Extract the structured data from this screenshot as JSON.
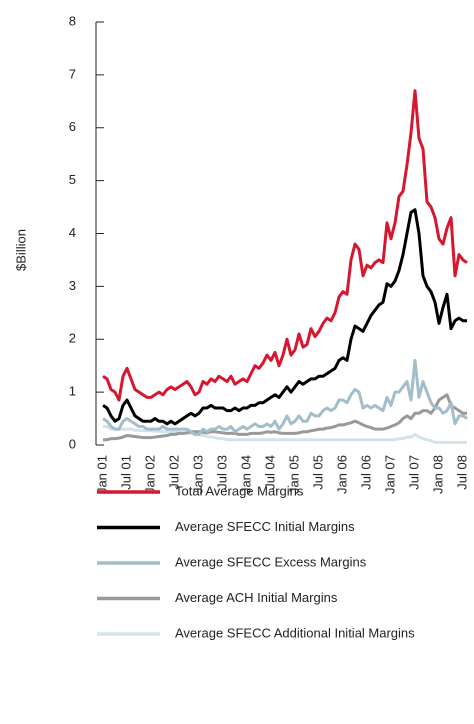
{
  "chart_data": {
    "type": "line",
    "y_label": "$Billion",
    "categories": [
      "Jan 01",
      null,
      null,
      null,
      null,
      null,
      "Jul 01",
      null,
      null,
      null,
      null,
      null,
      "Jan 02",
      null,
      null,
      null,
      null,
      null,
      "Jul 02",
      null,
      null,
      null,
      null,
      null,
      "Jan 03",
      null,
      null,
      null,
      null,
      null,
      "Jul 03",
      null,
      null,
      null,
      null,
      null,
      "Jan 04",
      null,
      null,
      null,
      null,
      null,
      "Jul 04",
      null,
      null,
      null,
      null,
      null,
      "Jan 05",
      null,
      null,
      null,
      null,
      null,
      "Jul 05",
      null,
      null,
      null,
      null,
      null,
      "Jan 06",
      null,
      null,
      null,
      null,
      null,
      "Jul 06",
      null,
      null,
      null,
      null,
      null,
      "Jan 07",
      null,
      null,
      null,
      null,
      null,
      "Jul 07",
      null,
      null,
      null,
      null,
      null,
      "Jan 08",
      null,
      null,
      null,
      null,
      null,
      "Jul 08",
      null
    ],
    "ylim": [
      0,
      8
    ],
    "yticks": [
      0,
      1,
      2,
      3,
      4,
      5,
      6,
      7,
      8
    ],
    "series": [
      {
        "name": "Total Average Margins",
        "color": "#d7172f",
        "values": [
          1.3,
          1.25,
          1.05,
          1.0,
          0.85,
          1.3,
          1.45,
          1.25,
          1.05,
          1.0,
          0.95,
          0.9,
          0.9,
          0.95,
          1.0,
          0.95,
          1.05,
          1.1,
          1.05,
          1.1,
          1.15,
          1.2,
          1.1,
          0.95,
          1.0,
          1.2,
          1.15,
          1.25,
          1.2,
          1.3,
          1.25,
          1.2,
          1.3,
          1.15,
          1.2,
          1.25,
          1.2,
          1.35,
          1.5,
          1.45,
          1.55,
          1.7,
          1.6,
          1.75,
          1.5,
          1.7,
          2.0,
          1.7,
          1.8,
          2.1,
          1.85,
          1.9,
          2.2,
          2.05,
          2.15,
          2.3,
          2.4,
          2.35,
          2.5,
          2.8,
          2.9,
          2.85,
          3.5,
          3.8,
          3.7,
          3.2,
          3.4,
          3.35,
          3.45,
          3.5,
          3.45,
          4.2,
          3.9,
          4.2,
          4.7,
          4.8,
          5.3,
          5.9,
          6.7,
          5.8,
          5.6,
          4.6,
          4.5,
          4.3,
          3.9,
          3.8,
          4.1,
          4.3,
          3.2,
          3.6,
          3.5,
          3.45
        ]
      },
      {
        "name": "Average SFECC Initial Margins",
        "color": "#000000",
        "values": [
          0.75,
          0.7,
          0.55,
          0.45,
          0.5,
          0.75,
          0.85,
          0.7,
          0.55,
          0.5,
          0.45,
          0.45,
          0.45,
          0.5,
          0.45,
          0.45,
          0.4,
          0.45,
          0.4,
          0.45,
          0.5,
          0.55,
          0.6,
          0.55,
          0.6,
          0.7,
          0.7,
          0.75,
          0.7,
          0.7,
          0.7,
          0.65,
          0.65,
          0.7,
          0.65,
          0.7,
          0.7,
          0.75,
          0.75,
          0.8,
          0.8,
          0.85,
          0.9,
          0.95,
          0.9,
          1.0,
          1.1,
          1.0,
          1.1,
          1.2,
          1.15,
          1.2,
          1.25,
          1.25,
          1.3,
          1.3,
          1.35,
          1.4,
          1.45,
          1.6,
          1.65,
          1.6,
          2.0,
          2.25,
          2.2,
          2.15,
          2.3,
          2.45,
          2.55,
          2.65,
          2.7,
          3.05,
          3.0,
          3.1,
          3.3,
          3.6,
          4.0,
          4.4,
          4.45,
          4.0,
          3.2,
          3.0,
          2.9,
          2.7,
          2.3,
          2.6,
          2.85,
          2.2,
          2.35,
          2.4,
          2.35,
          2.35
        ]
      },
      {
        "name": "Average SFECC Excess Margins",
        "color": "#a3bdcb",
        "values": [
          0.5,
          0.45,
          0.35,
          0.3,
          0.3,
          0.45,
          0.5,
          0.45,
          0.4,
          0.35,
          0.35,
          0.3,
          0.3,
          0.3,
          0.3,
          0.35,
          0.3,
          0.3,
          0.3,
          0.3,
          0.3,
          0.3,
          0.25,
          0.2,
          0.2,
          0.3,
          0.25,
          0.3,
          0.3,
          0.35,
          0.3,
          0.3,
          0.35,
          0.25,
          0.3,
          0.35,
          0.3,
          0.35,
          0.4,
          0.35,
          0.35,
          0.4,
          0.35,
          0.45,
          0.3,
          0.4,
          0.55,
          0.4,
          0.45,
          0.55,
          0.45,
          0.45,
          0.6,
          0.55,
          0.55,
          0.65,
          0.7,
          0.65,
          0.7,
          0.85,
          0.85,
          0.8,
          0.95,
          1.05,
          1.0,
          0.7,
          0.75,
          0.7,
          0.75,
          0.7,
          0.65,
          0.9,
          0.75,
          1.0,
          1.0,
          1.1,
          1.2,
          0.85,
          1.6,
          0.9,
          1.2,
          1.0,
          0.8,
          0.7,
          0.7,
          0.6,
          0.65,
          0.8,
          0.4,
          0.55,
          0.55,
          0.5
        ]
      },
      {
        "name": "Average ACH Initial Margins",
        "color": "#999999",
        "values": [
          0.1,
          0.1,
          0.12,
          0.12,
          0.13,
          0.15,
          0.18,
          0.17,
          0.16,
          0.15,
          0.14,
          0.14,
          0.14,
          0.15,
          0.16,
          0.17,
          0.18,
          0.2,
          0.2,
          0.22,
          0.22,
          0.23,
          0.25,
          0.25,
          0.25,
          0.24,
          0.23,
          0.25,
          0.25,
          0.24,
          0.23,
          0.22,
          0.22,
          0.22,
          0.2,
          0.2,
          0.2,
          0.22,
          0.22,
          0.22,
          0.23,
          0.25,
          0.24,
          0.25,
          0.23,
          0.22,
          0.22,
          0.22,
          0.22,
          0.23,
          0.25,
          0.25,
          0.27,
          0.28,
          0.3,
          0.3,
          0.32,
          0.33,
          0.35,
          0.38,
          0.38,
          0.4,
          0.42,
          0.45,
          0.42,
          0.38,
          0.35,
          0.33,
          0.3,
          0.3,
          0.3,
          0.32,
          0.35,
          0.38,
          0.42,
          0.5,
          0.55,
          0.5,
          0.6,
          0.6,
          0.65,
          0.65,
          0.6,
          0.7,
          0.85,
          0.9,
          0.95,
          0.75,
          0.7,
          0.65,
          0.6,
          0.6
        ]
      },
      {
        "name": "Average SFECC Additional Initial Margins",
        "color": "#d4e3ea",
        "values": [
          0.35,
          0.35,
          0.3,
          0.3,
          0.3,
          0.3,
          0.3,
          0.3,
          0.28,
          0.28,
          0.27,
          0.27,
          0.27,
          0.26,
          0.26,
          0.25,
          0.25,
          0.25,
          0.24,
          0.24,
          0.23,
          0.23,
          0.22,
          0.2,
          0.2,
          0.18,
          0.16,
          0.15,
          0.14,
          0.12,
          0.12,
          0.1,
          0.1,
          0.1,
          0.1,
          0.1,
          0.1,
          0.1,
          0.1,
          0.1,
          0.1,
          0.1,
          0.1,
          0.1,
          0.1,
          0.1,
          0.1,
          0.1,
          0.1,
          0.1,
          0.1,
          0.1,
          0.1,
          0.1,
          0.1,
          0.1,
          0.1,
          0.1,
          0.1,
          0.1,
          0.1,
          0.1,
          0.1,
          0.1,
          0.1,
          0.1,
          0.1,
          0.1,
          0.1,
          0.1,
          0.1,
          0.1,
          0.1,
          0.1,
          0.12,
          0.12,
          0.15,
          0.15,
          0.2,
          0.15,
          0.12,
          0.1,
          0.08,
          0.05,
          0.05,
          0.05,
          0.05,
          0.05,
          0.05,
          0.05,
          0.05,
          0.05
        ]
      }
    ]
  }
}
